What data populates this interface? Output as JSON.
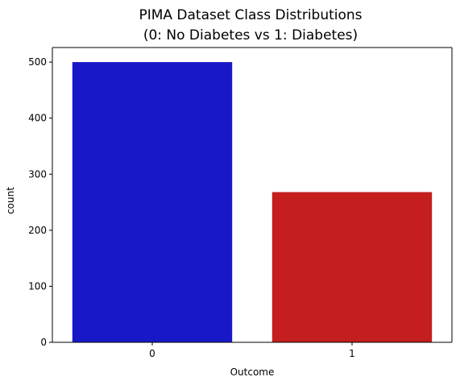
{
  "chart_data": {
    "type": "bar",
    "title_line1": "PIMA Dataset Class Distributions",
    "title_line2": "(0: No Diabetes vs 1: Diabetes)",
    "xlabel": "Outcome",
    "ylabel": "count",
    "categories": [
      "0",
      "1"
    ],
    "values": [
      500,
      268
    ],
    "colors": [
      "#1818c8",
      "#c41e1e"
    ],
    "ylim": [
      0,
      526
    ],
    "yticks": [
      0,
      100,
      200,
      300,
      400,
      500
    ],
    "grid": false,
    "legend": "none"
  }
}
